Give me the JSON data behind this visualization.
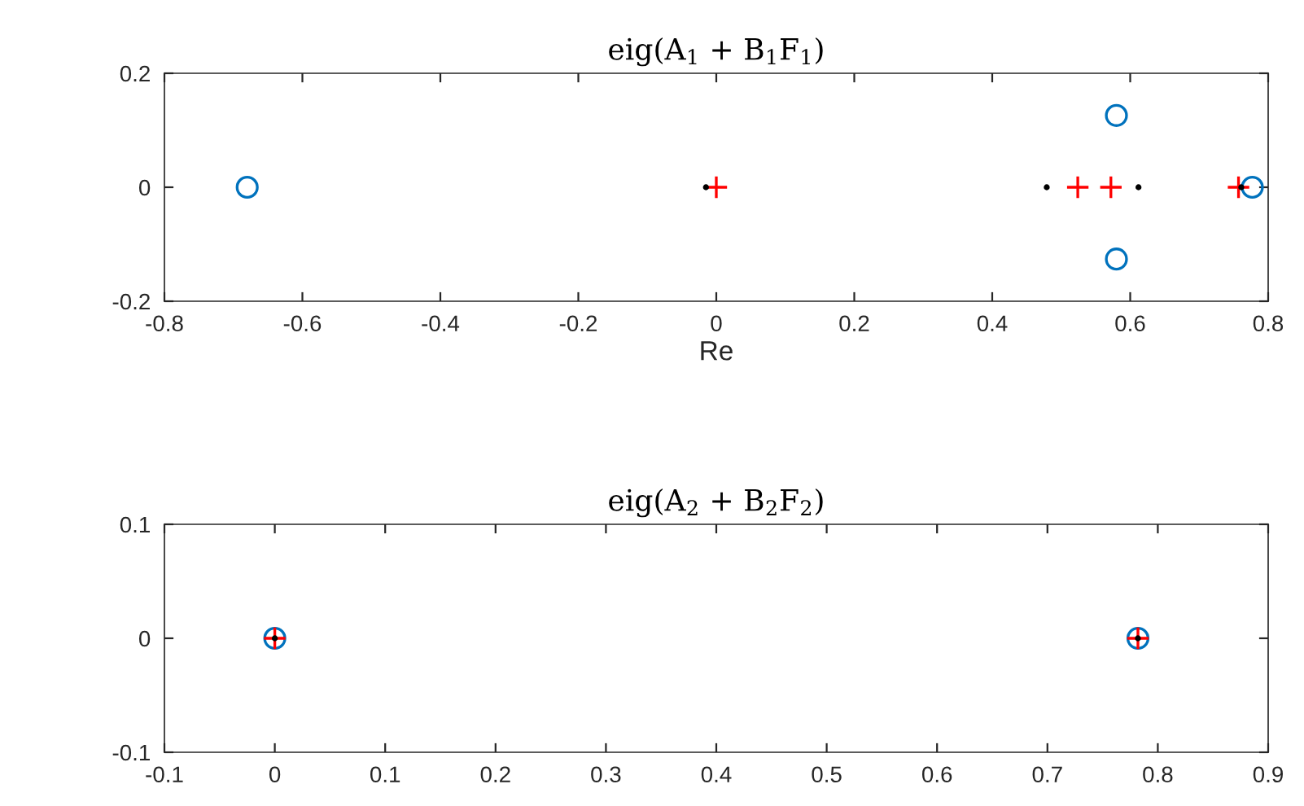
{
  "chart_data": [
    {
      "type": "scatter",
      "title": "eig(A$_{1}$ + B$_{1}$F$_{1}$)",
      "xlabel": "Re",
      "xlim": [
        -0.8,
        0.8
      ],
      "xticks": [
        -0.8,
        -0.6,
        -0.4,
        -0.2,
        0,
        0.2,
        0.4,
        0.6,
        0.8
      ],
      "ylim": [
        -0.2,
        0.2
      ],
      "yticks": [
        -0.2,
        0,
        0.2
      ],
      "series": [
        {
          "color": "#0072bd",
          "marker": "circle",
          "x": [
            -0.68,
            0.58,
            0.58,
            0.777
          ],
          "values": [
            0,
            0.126,
            -0.126,
            0
          ]
        },
        {
          "color": "#ff0000",
          "marker": "cross",
          "x": [
            0,
            0.524,
            0.572,
            0.757
          ],
          "values": [
            0,
            0,
            0,
            0
          ]
        },
        {
          "color": "#000000",
          "marker": "circle",
          "x": [
            -0.015,
            0.479,
            0.612,
            0.761
          ],
          "values": [
            0,
            0,
            0,
            0
          ]
        }
      ]
    },
    {
      "type": "scatter",
      "title": "eig(A$_{2}$ + B$_{2}$F$_{2}$)",
      "xlim": [
        -0.1,
        0.9
      ],
      "xticks": [
        -0.1,
        0,
        0.1,
        0.2,
        0.3,
        0.4,
        0.5,
        0.6,
        0.7,
        0.8,
        0.9
      ],
      "ylim": [
        -0.1,
        0.1
      ],
      "yticks": [
        -0.1,
        0,
        0.1
      ],
      "series": [
        {
          "color": "#0072bd",
          "marker": "circle",
          "x": [
            0,
            0.782
          ],
          "values": [
            0,
            0
          ]
        },
        {
          "color": "#ff0000",
          "marker": "cross",
          "x": [
            0,
            0.782
          ],
          "values": [
            0,
            0
          ]
        },
        {
          "color": "#000000",
          "marker": "circle",
          "x": [
            0,
            0.782
          ],
          "values": [
            0,
            0
          ]
        }
      ]
    }
  ]
}
